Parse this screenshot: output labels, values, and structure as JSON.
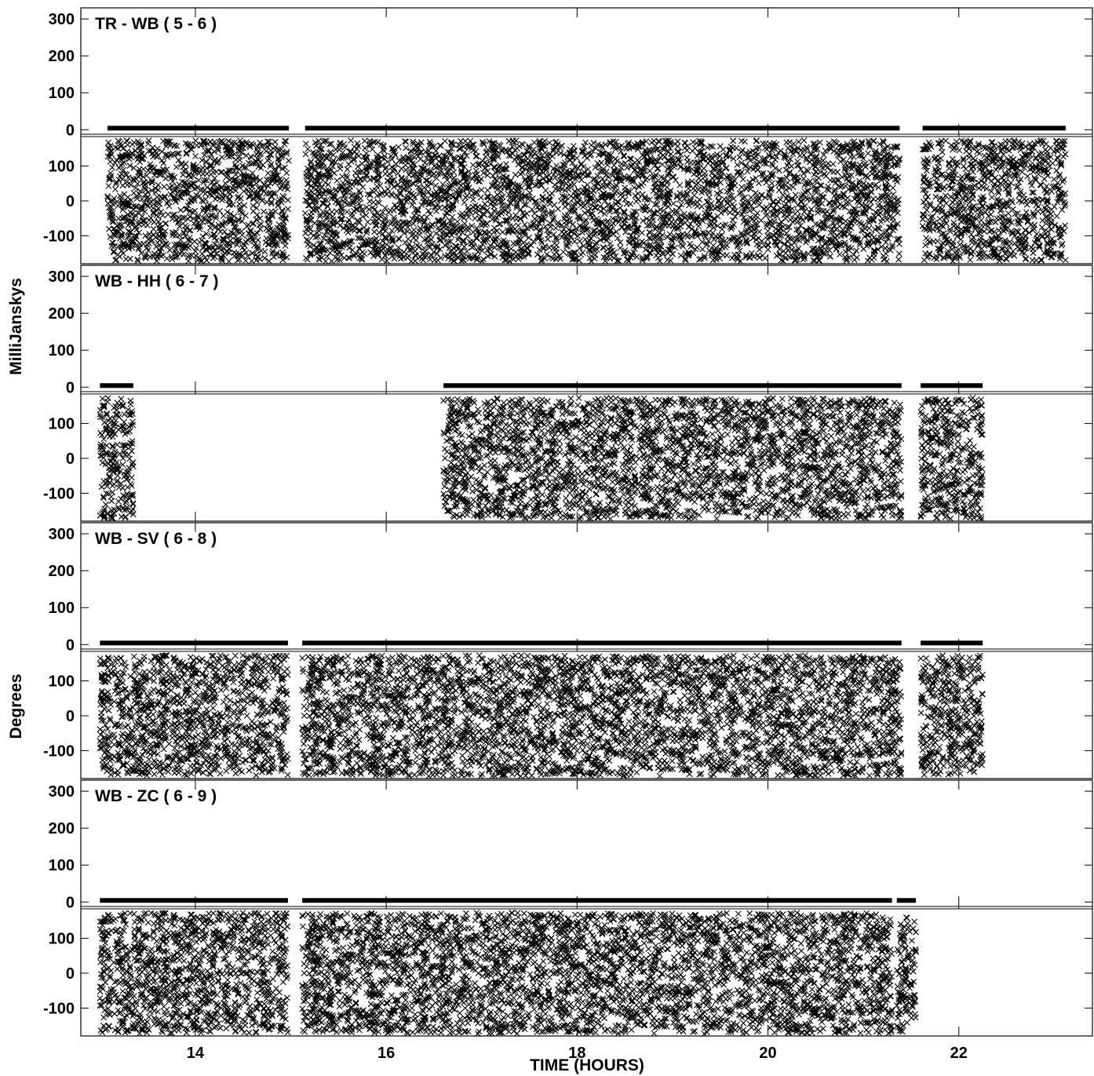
{
  "chart_data": {
    "type": "scatter",
    "xlabel": "TIME (HOURS)",
    "ylabel_amplitude": "MilliJanskys",
    "ylabel_phase": "Degrees",
    "xlim": [
      12.8,
      23.4
    ],
    "x_ticks": [
      14,
      16,
      18,
      20,
      22
    ],
    "marker": "x",
    "panels": [
      {
        "baseline": "TR - WB ( 5 - 6 )",
        "amplitude_ylim": [
          -10,
          330
        ],
        "amplitude_ticks": [
          0,
          100,
          200,
          300
        ],
        "amplitude_values_approx": 0,
        "phase_ylim": [
          -180,
          180
        ],
        "phase_ticks": [
          -100,
          0,
          100
        ],
        "data_intervals_hours": [
          [
            13.08,
            14.98
          ],
          [
            15.15,
            21.38
          ],
          [
            21.62,
            23.12
          ]
        ],
        "gaps_hours": [
          [
            14.98,
            15.15
          ],
          [
            21.38,
            21.62
          ]
        ]
      },
      {
        "baseline": "WB - HH ( 6 - 7 )",
        "amplitude_ylim": [
          -10,
          330
        ],
        "amplitude_ticks": [
          0,
          100,
          200,
          300
        ],
        "amplitude_values_approx": 0,
        "phase_ylim": [
          -180,
          180
        ],
        "phase_ticks": [
          -100,
          0,
          100
        ],
        "data_intervals_hours": [
          [
            13.0,
            13.35
          ],
          [
            16.6,
            21.4
          ],
          [
            21.6,
            22.25
          ]
        ],
        "gaps_hours": [
          [
            13.35,
            16.6
          ],
          [
            21.4,
            21.6
          ]
        ]
      },
      {
        "baseline": "WB - SV ( 6 - 8 )",
        "amplitude_ylim": [
          -10,
          330
        ],
        "amplitude_ticks": [
          0,
          100,
          200,
          300
        ],
        "amplitude_values_approx": 0,
        "phase_ylim": [
          -180,
          180
        ],
        "phase_ticks": [
          -100,
          0,
          100
        ],
        "data_intervals_hours": [
          [
            13.0,
            14.97
          ],
          [
            15.12,
            21.4
          ],
          [
            21.6,
            22.25
          ]
        ],
        "gaps_hours": [
          [
            14.97,
            15.12
          ],
          [
            21.4,
            21.6
          ]
        ]
      },
      {
        "baseline": "WB - ZC ( 6 - 9 )",
        "amplitude_ylim": [
          -10,
          330
        ],
        "amplitude_ticks": [
          0,
          100,
          200,
          300
        ],
        "amplitude_values_approx": 0,
        "phase_ylim": [
          -180,
          180
        ],
        "phase_ticks": [
          -100,
          0,
          100
        ],
        "data_intervals_hours": [
          [
            13.0,
            14.97
          ],
          [
            15.12,
            21.3
          ],
          [
            21.35,
            21.55
          ]
        ],
        "gaps_hours": [
          [
            14.97,
            15.12
          ],
          [
            21.55,
            23.4
          ]
        ]
      }
    ]
  }
}
